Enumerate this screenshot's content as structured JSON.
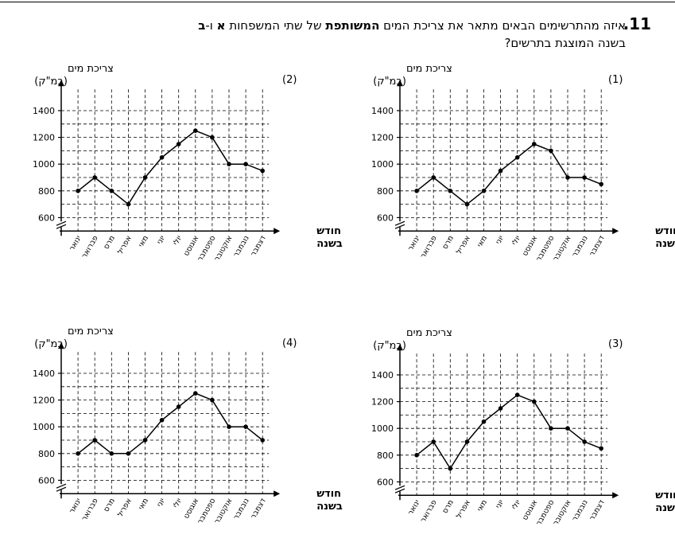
{
  "question": {
    "number": ".11",
    "pre": "איזה מהתרשימים הבאים מתאר את צריכת המים ",
    "bold": "המשותפת",
    "mid": " של שתי המשפחות ",
    "a": "א",
    "and": " ו-",
    "b": "ב",
    "line2": "בשנה המוצגת בתרשים?"
  },
  "axis_text": {
    "ylabel_line1": "צריכת מים",
    "ylabel_line2": "(במ\"ק)",
    "xlabel_line1": "חודש",
    "xlabel_line2": "בשנה"
  },
  "chart_data": [
    {
      "type": "line",
      "panel_label": "(1)",
      "categories": [
        "ינואר",
        "פברואר",
        "מרס",
        "אפריל",
        "מאי",
        "יוני",
        "יולי",
        "אוגוסט",
        "ספטמבר",
        "אוקטובר",
        "נובמבר",
        "דצמבר"
      ],
      "values": [
        800,
        900,
        800,
        700,
        800,
        950,
        1050,
        1150,
        1100,
        900,
        900,
        850
      ],
      "y_ticks": [
        600,
        800,
        1000,
        1200,
        1400
      ],
      "ylim": [
        500,
        1500
      ],
      "axis_break": true,
      "grid": "dashed"
    },
    {
      "type": "line",
      "panel_label": "(2)",
      "categories": [
        "ינואר",
        "פברואר",
        "מרס",
        "אפריל",
        "מאי",
        "יוני",
        "יולי",
        "אוגוסט",
        "ספטמבר",
        "אוקטובר",
        "נובמבר",
        "דצמבר"
      ],
      "values": [
        800,
        900,
        800,
        700,
        900,
        1050,
        1150,
        1250,
        1200,
        1000,
        1000,
        950
      ],
      "y_ticks": [
        600,
        800,
        1000,
        1200,
        1400
      ],
      "ylim": [
        500,
        1500
      ],
      "axis_break": true,
      "grid": "dashed"
    },
    {
      "type": "line",
      "panel_label": "(3)",
      "categories": [
        "ינואר",
        "פברואר",
        "מרס",
        "אפריל",
        "מאי",
        "יוני",
        "יולי",
        "אוגוסט",
        "ספטמבר",
        "אוקטובר",
        "נובמבר",
        "דצמבר"
      ],
      "values": [
        800,
        900,
        700,
        900,
        1050,
        1150,
        1250,
        1200,
        1000,
        1000,
        900,
        850
      ],
      "y_ticks": [
        600,
        800,
        1000,
        1200,
        1400
      ],
      "ylim": [
        500,
        1500
      ],
      "axis_break": true,
      "grid": "dashed"
    },
    {
      "type": "line",
      "panel_label": "(4)",
      "categories": [
        "ינואר",
        "פברואר",
        "מרס",
        "אפריל",
        "מאי",
        "יוני",
        "יולי",
        "אוגוסט",
        "ספטמבר",
        "אוקטובר",
        "נובמבר",
        "דצמבר"
      ],
      "values": [
        800,
        900,
        800,
        800,
        900,
        1050,
        1150,
        1250,
        1200,
        1000,
        1000,
        900
      ],
      "y_ticks": [
        600,
        800,
        1000,
        1200,
        1400
      ],
      "ylim": [
        500,
        1500
      ],
      "axis_break": true,
      "grid": "dashed"
    }
  ]
}
